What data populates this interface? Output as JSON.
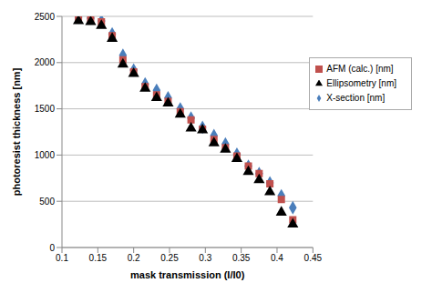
{
  "chart_data": {
    "type": "scatter",
    "xlabel": "mask transmission (I/I0)",
    "ylabel": "photoresist thickness [nm]",
    "x": [
      0.123,
      0.14,
      0.155,
      0.17,
      0.185,
      0.2,
      0.216,
      0.232,
      0.248,
      0.265,
      0.28,
      0.296,
      0.312,
      0.328,
      0.344,
      0.36,
      0.375,
      0.39,
      0.406,
      0.422
    ],
    "series": [
      {
        "name": "X-section [nm]",
        "color": "#4a7ebb",
        "marker": "diamond",
        "values": [
          2490,
          2480,
          2450,
          2310,
          2080,
          1920,
          1770,
          1700,
          1620,
          1500,
          1400,
          1300,
          1210,
          1120,
          1010,
          880,
          800,
          700,
          560,
          430
        ]
      },
      {
        "name": "AFM (calc.) [nm]",
        "color": "#c0504d",
        "marker": "square",
        "values": [
          2490,
          2470,
          2440,
          2290,
          2030,
          1900,
          1740,
          1650,
          1580,
          1470,
          1380,
          1280,
          1170,
          1080,
          990,
          880,
          800,
          690,
          520,
          300
        ]
      },
      {
        "name": "Ellipsometry [nm]",
        "color": "#000000",
        "marker": "triangle",
        "values": [
          2450,
          2440,
          2400,
          2260,
          1980,
          1880,
          1720,
          1620,
          1560,
          1440,
          1290,
          1270,
          1130,
          1060,
          960,
          820,
          730,
          600,
          380,
          250
        ]
      }
    ],
    "xlim": [
      0.1,
      0.45
    ],
    "xticks": [
      0.1,
      0.15,
      0.2,
      0.25,
      0.3,
      0.35,
      0.4,
      0.45
    ],
    "ylim": [
      0,
      2500
    ],
    "yticks": [
      0,
      500,
      1000,
      1500,
      2000,
      2500
    ],
    "grid": true,
    "legend": "upper right"
  }
}
